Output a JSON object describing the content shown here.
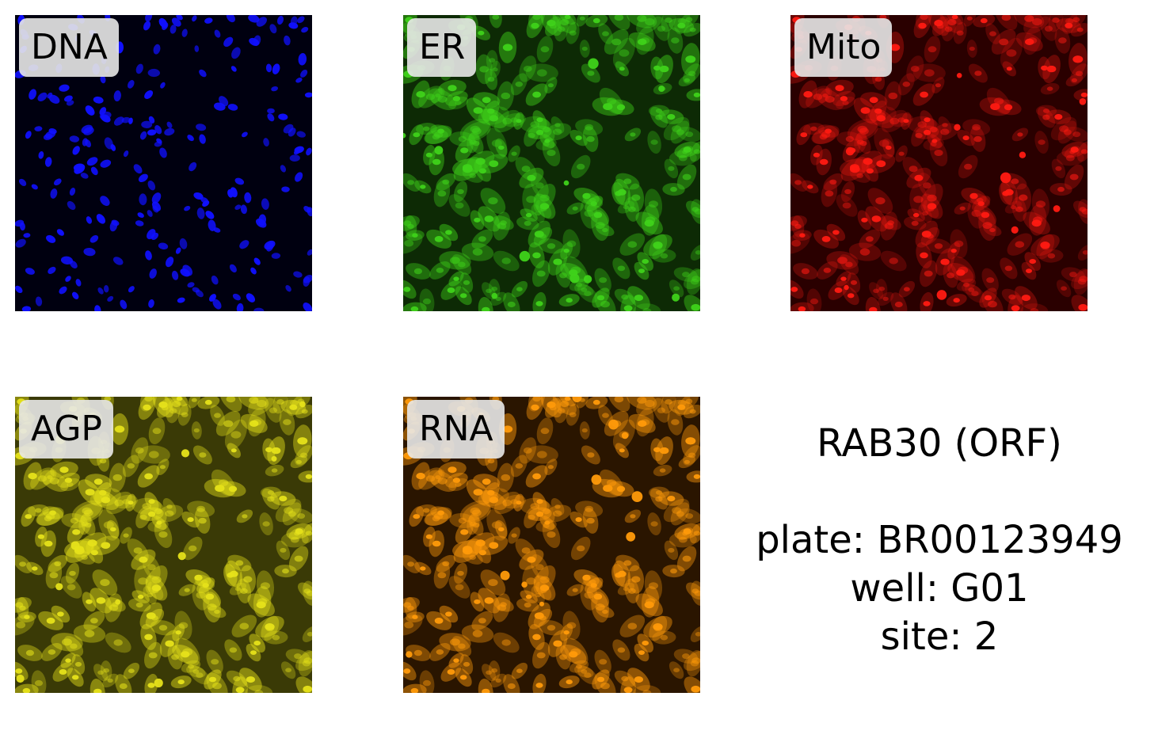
{
  "panels": [
    {
      "id": "dna",
      "label": "DNA",
      "color": "#1010ff",
      "background": "#000010"
    },
    {
      "id": "er",
      "label": "ER",
      "color": "#3fd21a",
      "background": "#0d2a05"
    },
    {
      "id": "mito",
      "label": "Mito",
      "color": "#ff1a12",
      "background": "#2a0000"
    },
    {
      "id": "agp",
      "label": "AGP",
      "color": "#e6e21a",
      "background": "#3a3a06"
    },
    {
      "id": "rna",
      "label": "RNA",
      "color": "#ff9a0a",
      "background": "#2a1500"
    }
  ],
  "info": {
    "title": "RAB30 (ORF)",
    "plate": "plate: BR00123949",
    "well": "well: G01",
    "site": "site: 2"
  }
}
